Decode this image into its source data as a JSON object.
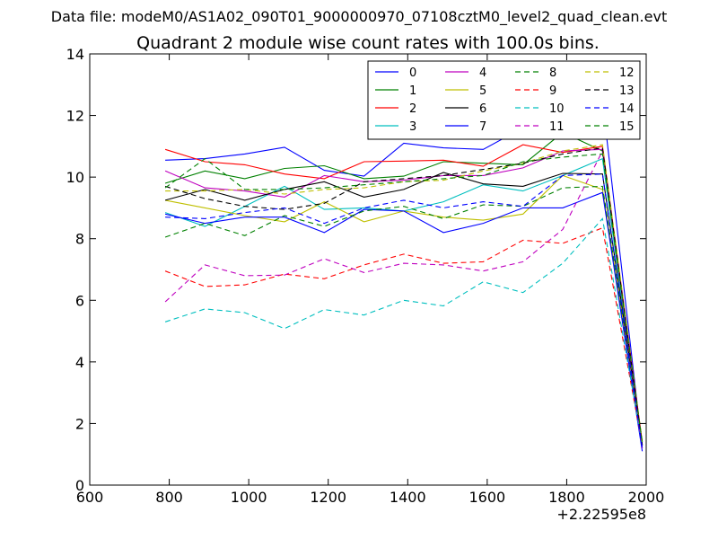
{
  "chart_data": {
    "type": "line",
    "supertitle": "Data file: modeM0/AS1A02_090T01_9000000970_07108cztM0_level2_quad_clean.evt",
    "title": "Quadrant 2 module wise count rates with 100.0s bins.",
    "xlabel": "",
    "ylabel": "",
    "x_offset_label": "+2.22595e8",
    "xlim": [
      600,
      2000
    ],
    "ylim": [
      0,
      14
    ],
    "xticks": [
      600,
      800,
      1000,
      1200,
      1400,
      1600,
      1800,
      2000
    ],
    "yticks": [
      0,
      2,
      4,
      6,
      8,
      10,
      12,
      14
    ],
    "xtick_labels": [
      "600",
      "800",
      "1000",
      "1200",
      "1400",
      "1600",
      "1800",
      "2000"
    ],
    "ytick_labels": [
      "0",
      "2",
      "4",
      "6",
      "8",
      "10",
      "12",
      "14"
    ],
    "grid": false,
    "legend_position": "top-right",
    "x": [
      790,
      890,
      990,
      1090,
      1190,
      1290,
      1390,
      1490,
      1590,
      1690,
      1790,
      1890,
      1990
    ],
    "series": [
      {
        "name": "0",
        "color": "#0000ff",
        "dash": "solid",
        "values": [
          10.55,
          10.6,
          10.75,
          10.97,
          10.22,
          10.03,
          11.1,
          10.95,
          10.9,
          11.6,
          11.68,
          12.48,
          1.2
        ]
      },
      {
        "name": "1",
        "color": "#008000",
        "dash": "solid",
        "values": [
          9.8,
          10.2,
          9.95,
          10.28,
          10.37,
          9.95,
          10.03,
          10.5,
          10.45,
          10.4,
          11.45,
          10.85,
          1.3
        ]
      },
      {
        "name": "2",
        "color": "#ff0000",
        "dash": "solid",
        "values": [
          10.9,
          10.5,
          10.4,
          10.1,
          9.95,
          10.5,
          10.52,
          10.55,
          10.35,
          11.05,
          10.8,
          11.0,
          1.4
        ]
      },
      {
        "name": "3",
        "color": "#00bfbf",
        "dash": "solid",
        "values": [
          8.85,
          8.4,
          9.05,
          9.7,
          8.95,
          9.0,
          8.9,
          9.2,
          9.75,
          9.55,
          10.05,
          10.6,
          1.2
        ]
      },
      {
        "name": "4",
        "color": "#bf00bf",
        "dash": "solid",
        "values": [
          10.2,
          9.65,
          9.55,
          9.35,
          10.05,
          9.85,
          9.9,
          10.05,
          10.05,
          10.3,
          10.85,
          10.9,
          1.3
        ]
      },
      {
        "name": "5",
        "color": "#bfbf00",
        "dash": "solid",
        "values": [
          9.25,
          9.0,
          8.75,
          8.55,
          9.2,
          8.55,
          8.9,
          8.7,
          8.6,
          8.8,
          10.05,
          9.6,
          1.4
        ]
      },
      {
        "name": "6",
        "color": "#000000",
        "dash": "solid",
        "values": [
          9.25,
          9.6,
          9.25,
          9.6,
          9.85,
          9.35,
          9.6,
          10.15,
          9.78,
          9.7,
          10.12,
          10.1,
          1.3
        ]
      },
      {
        "name": "7",
        "color": "#0000ff",
        "dash": "solid",
        "values": [
          8.8,
          8.5,
          8.7,
          8.7,
          8.2,
          8.95,
          8.9,
          8.2,
          8.5,
          9.0,
          9.0,
          9.5,
          1.1
        ]
      },
      {
        "name": "8",
        "color": "#008000",
        "dash": "dashed",
        "values": [
          8.05,
          8.5,
          8.1,
          8.75,
          8.4,
          8.9,
          9.05,
          8.65,
          9.1,
          9.05,
          9.65,
          9.7,
          1.3
        ]
      },
      {
        "name": "9",
        "color": "#ff0000",
        "dash": "dashed",
        "values": [
          6.95,
          6.45,
          6.5,
          6.85,
          6.7,
          7.15,
          7.5,
          7.2,
          7.25,
          7.95,
          7.85,
          8.35,
          1.3
        ]
      },
      {
        "name": "10",
        "color": "#00bfbf",
        "dash": "dashed",
        "values": [
          5.3,
          5.72,
          5.6,
          5.08,
          5.7,
          5.52,
          6.0,
          5.82,
          6.6,
          6.25,
          7.2,
          8.65,
          1.3
        ]
      },
      {
        "name": "11",
        "color": "#bf00bf",
        "dash": "dashed",
        "values": [
          5.95,
          7.15,
          6.8,
          6.82,
          7.35,
          6.9,
          7.2,
          7.15,
          6.95,
          7.25,
          8.3,
          10.85,
          1.2
        ]
      },
      {
        "name": "12",
        "color": "#bfbf00",
        "dash": "dashed",
        "values": [
          9.55,
          9.55,
          9.6,
          9.45,
          9.6,
          9.65,
          9.85,
          9.9,
          10.2,
          10.45,
          10.85,
          11.05,
          1.4
        ]
      },
      {
        "name": "13",
        "color": "#000000",
        "dash": "dashed",
        "values": [
          9.7,
          9.3,
          9.05,
          8.95,
          9.15,
          9.85,
          9.95,
          10.05,
          10.25,
          10.45,
          10.75,
          10.95,
          1.3
        ]
      },
      {
        "name": "14",
        "color": "#0000ff",
        "dash": "dashed",
        "values": [
          8.7,
          8.65,
          8.85,
          9.0,
          8.5,
          9.0,
          9.25,
          9.0,
          9.2,
          9.05,
          10.05,
          10.1,
          1.2
        ]
      },
      {
        "name": "15",
        "color": "#008000",
        "dash": "dashed",
        "values": [
          9.65,
          10.6,
          9.6,
          9.6,
          9.65,
          9.75,
          9.85,
          9.95,
          10.05,
          10.5,
          10.65,
          10.75,
          1.4
        ]
      }
    ]
  }
}
